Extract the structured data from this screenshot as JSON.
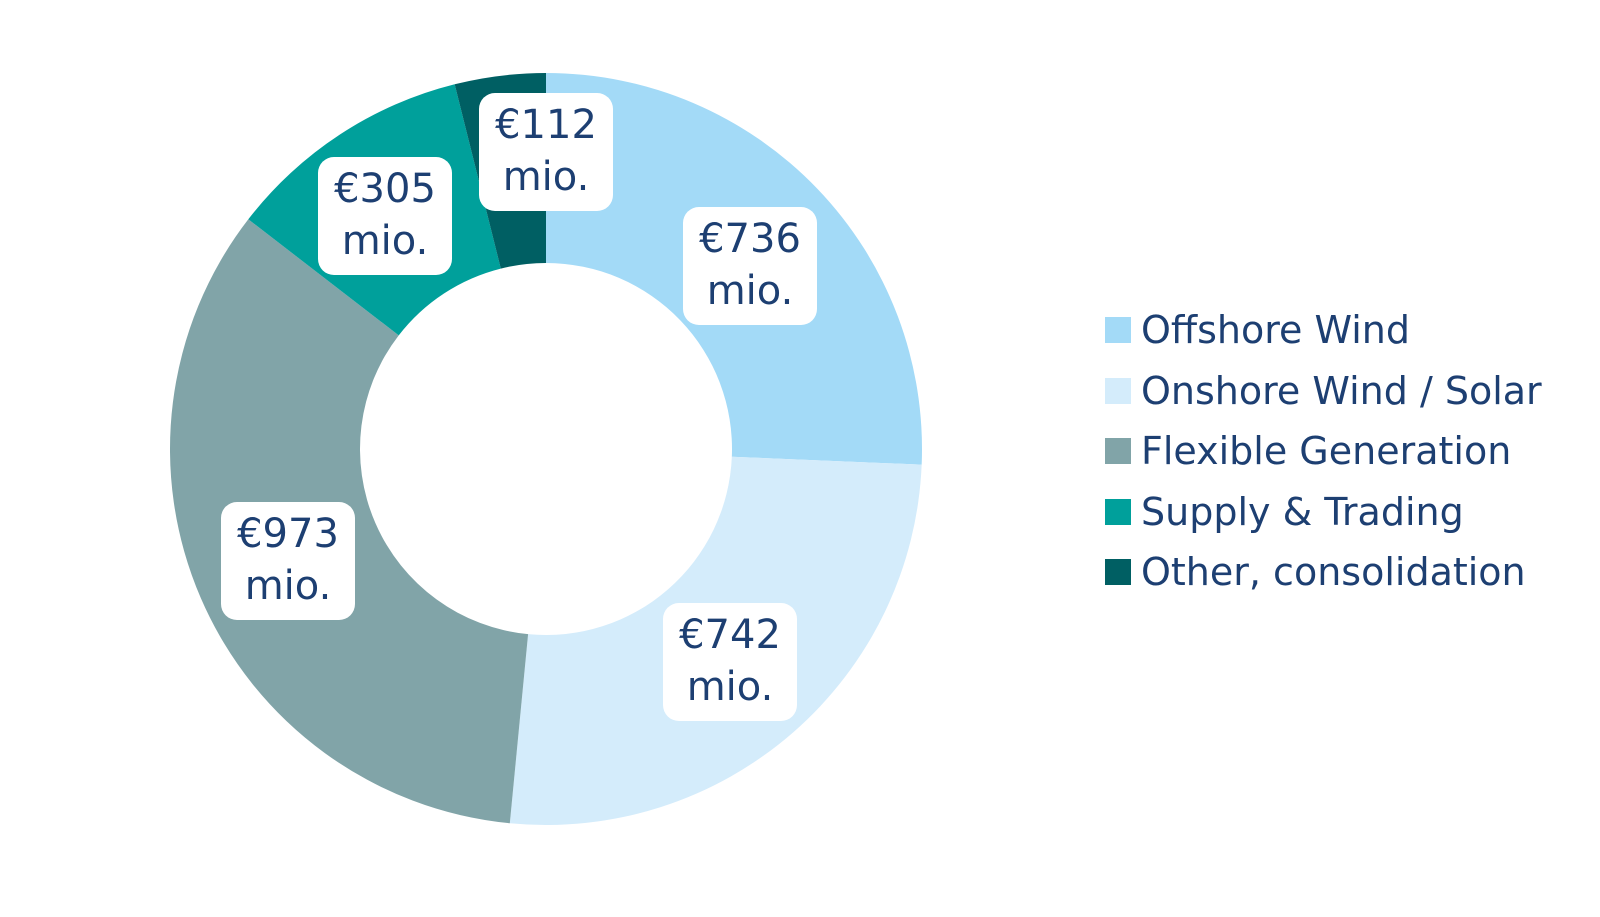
{
  "chart_data": {
    "type": "pie",
    "subtype": "donut",
    "title": "",
    "unit": "€ mio.",
    "categories": [
      "Offshore Wind",
      "Onshore Wind / Solar",
      "Flexible Generation",
      "Supply & Trading",
      "Other, consolidation"
    ],
    "values": [
      736,
      742,
      973,
      305,
      112
    ],
    "colors": [
      "#a3daf7",
      "#d4ecfb",
      "#81a4a8",
      "#00a09b",
      "#005f63"
    ],
    "data_labels": [
      {
        "line1": "€736",
        "line2": "mio."
      },
      {
        "line1": "€742",
        "line2": "mio."
      },
      {
        "line1": "€973",
        "line2": "mio."
      },
      {
        "line1": "€305",
        "line2": "mio."
      },
      {
        "line1": "€112",
        "line2": "mio."
      }
    ],
    "legend_position": "right"
  }
}
